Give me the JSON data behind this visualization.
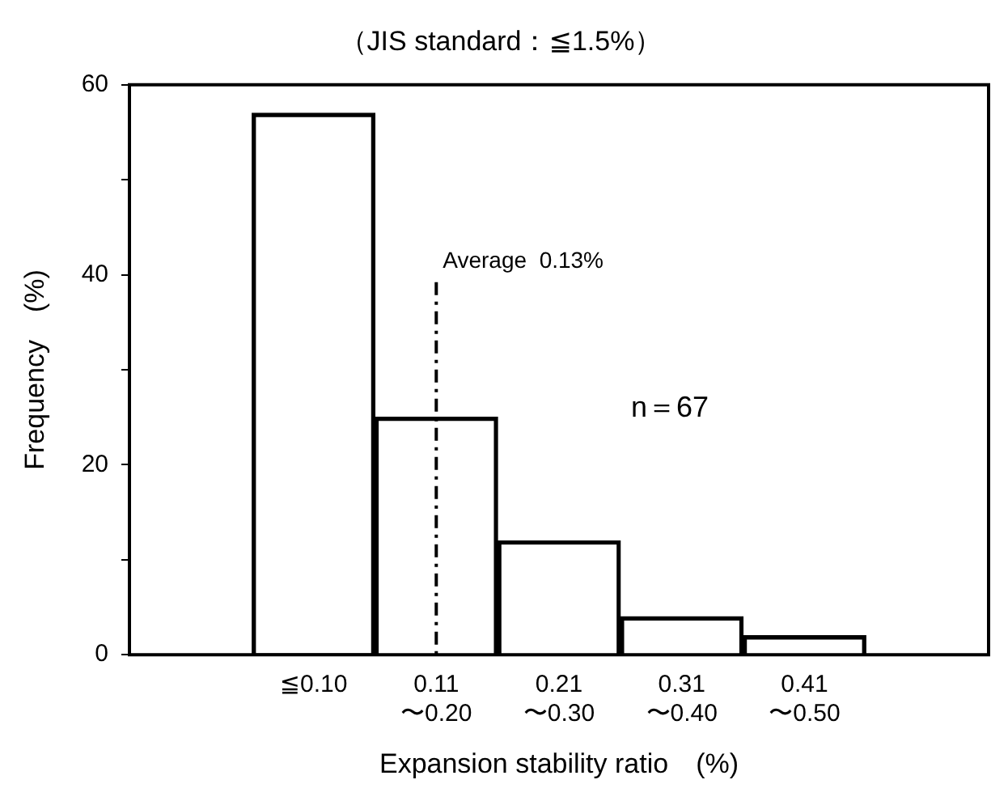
{
  "chart_data": {
    "type": "bar",
    "title": "（JIS standard：≦1.5%）",
    "xlabel": "Expansion stability ratio　(%)",
    "ylabel": "Frequency　(%)",
    "categories": [
      null,
      "≦0.10",
      "0.11\n〜0.20",
      "0.21\n〜0.30",
      "0.31\n〜0.40",
      "0.41\n〜0.50",
      null
    ],
    "values": [
      null,
      57,
      25,
      12,
      4,
      2,
      null
    ],
    "color": "#000000",
    "ylim": [
      0,
      60
    ],
    "yticks": [
      0,
      {
        "value": 10,
        "label": null
      },
      20,
      {
        "value": 30,
        "label": null
      },
      40,
      {
        "value": 50,
        "label": null
      },
      60
    ],
    "ref_lines": [
      {
        "axis": "x",
        "value": "0.11\n〜0.20",
        "label": "Average  0.13%",
        "line_style": "dashdot",
        "color": "#000000"
      }
    ],
    "annotations": [
      "n＝67"
    ],
    "grid": false,
    "legend": false
  }
}
